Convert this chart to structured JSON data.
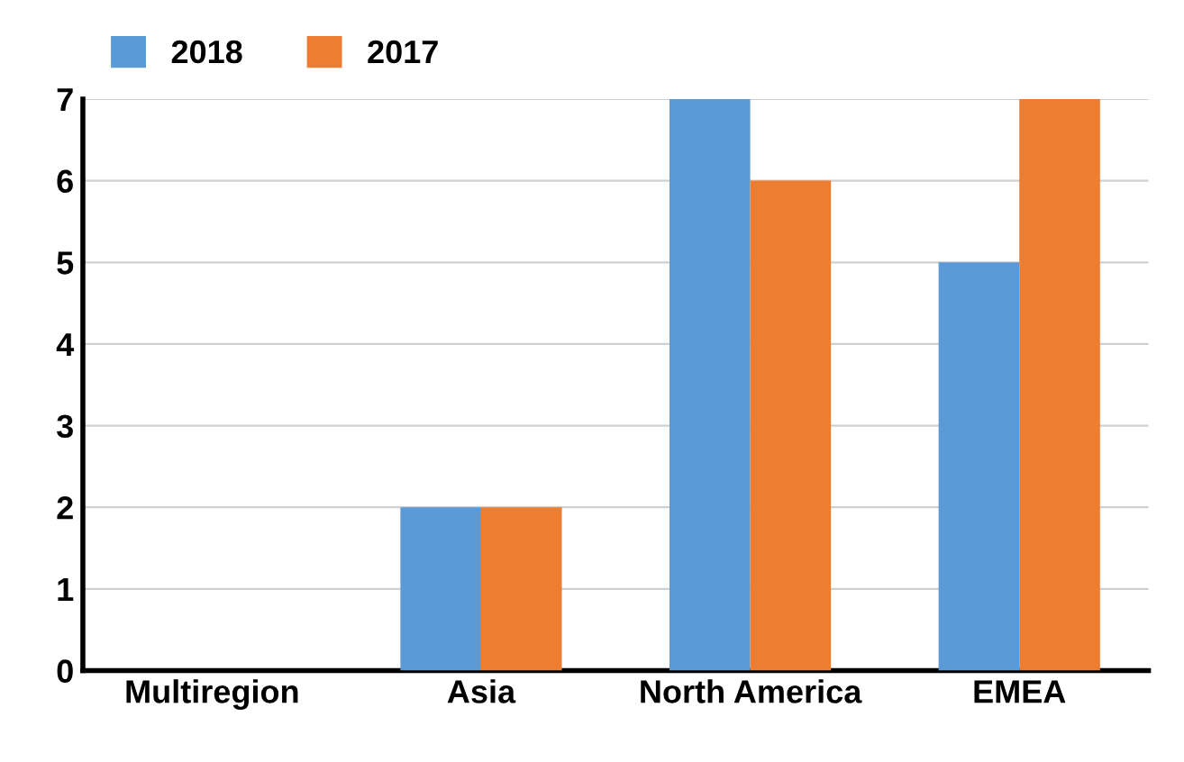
{
  "chart_data": {
    "type": "bar",
    "categories": [
      "Multiregion",
      "Asia",
      "North America",
      "EMEA"
    ],
    "series": [
      {
        "name": "2018",
        "color": "#5b9bd5",
        "values": [
          0,
          2,
          7,
          5
        ]
      },
      {
        "name": "2017",
        "color": "#ed7d31",
        "values": [
          0,
          2,
          6,
          7
        ]
      }
    ],
    "ylim": [
      0,
      7
    ],
    "yticks": [
      0,
      1,
      2,
      3,
      4,
      5,
      6,
      7
    ],
    "grid": "y",
    "legend": "top left"
  }
}
